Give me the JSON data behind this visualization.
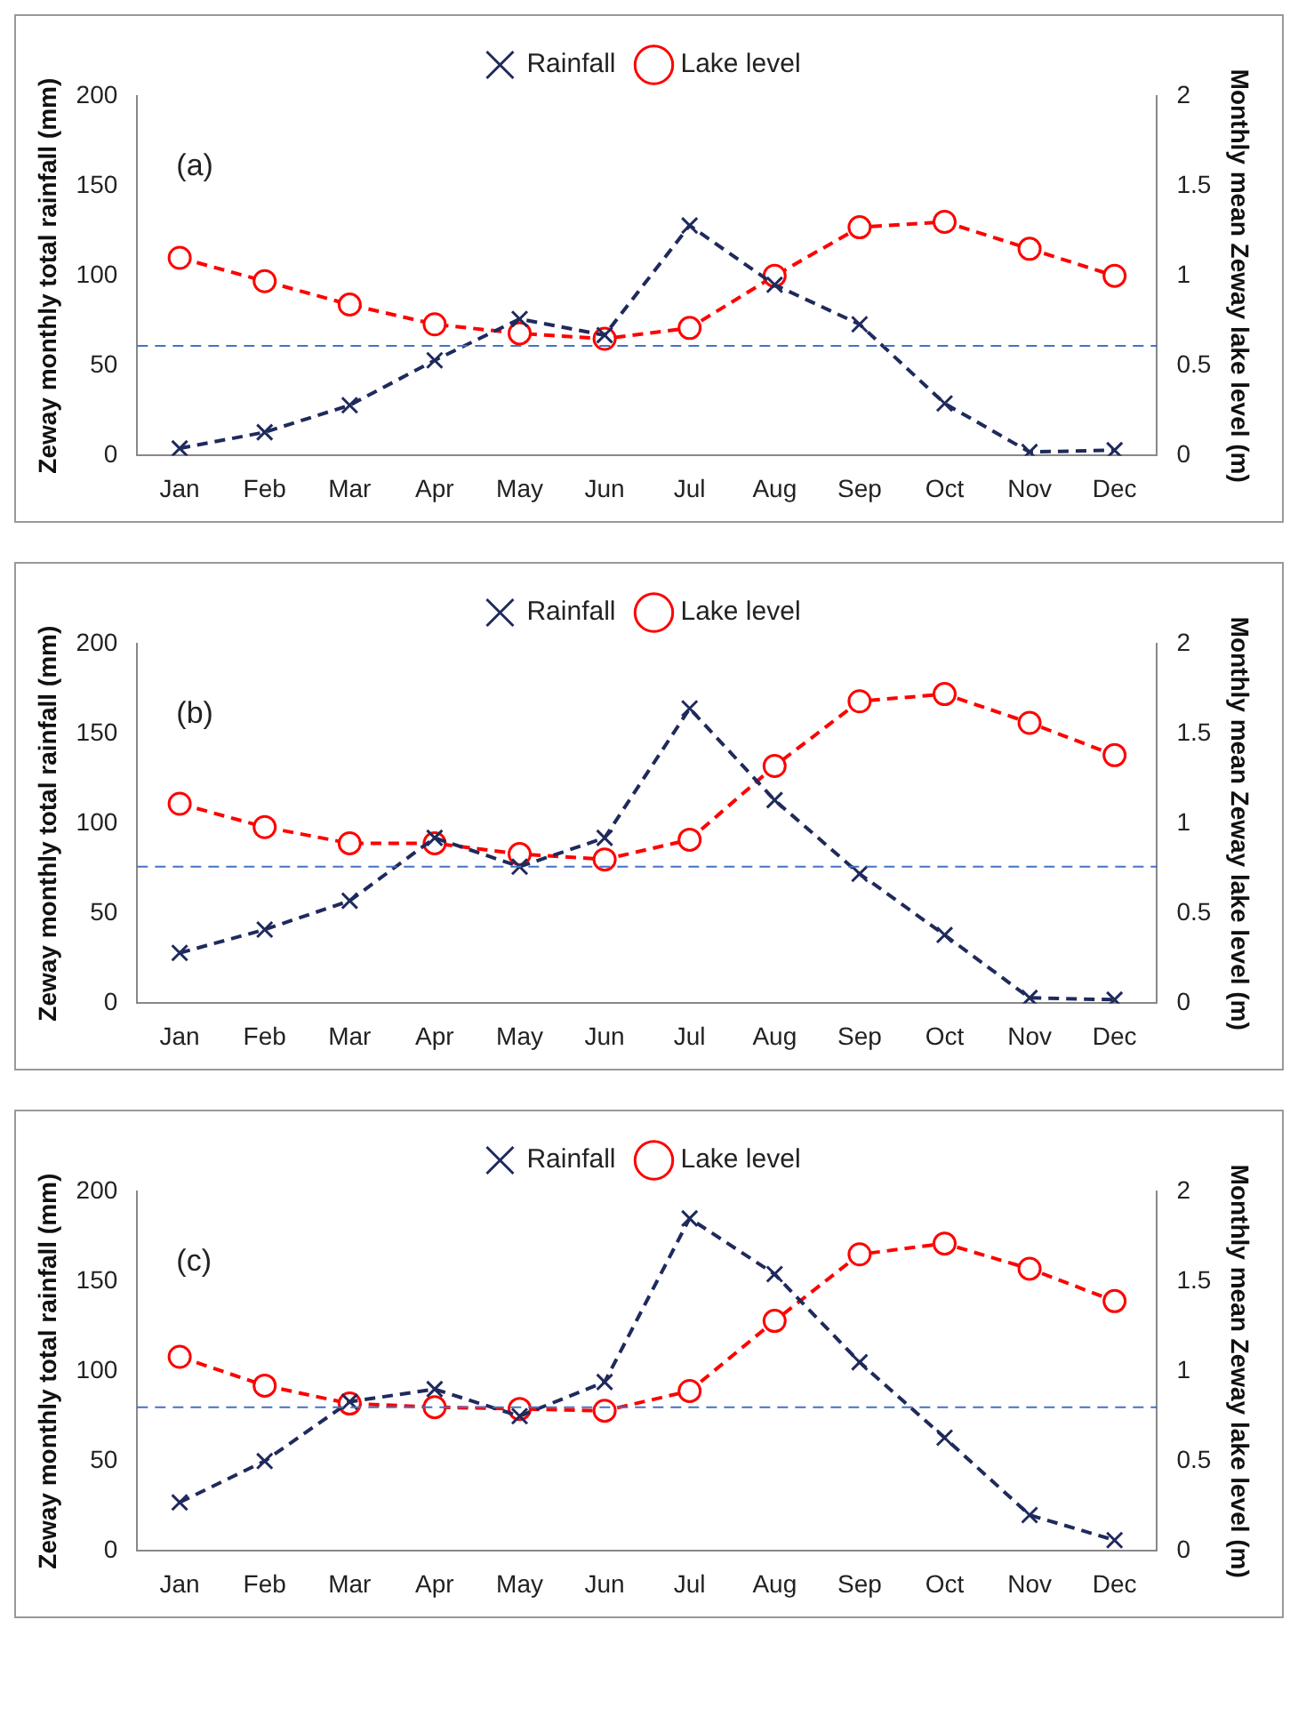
{
  "chart_data": [
    {
      "type": "line",
      "categories": [
        "Jan",
        "Feb",
        "Mar",
        "Apr",
        "May",
        "Jun",
        "Jul",
        "Aug",
        "Sep",
        "Oct",
        "Nov",
        "Dec"
      ],
      "ylabel": "Zeway monthly total rainfall (mm)",
      "y2label": "Monthly mean Zeway lake level (m)",
      "ylim": [
        0,
        200
      ],
      "yticks": [
        0,
        50,
        100,
        150,
        200
      ],
      "y2lim": [
        0,
        2
      ],
      "y2ticks": [
        0,
        0.5,
        1,
        1.5,
        2
      ],
      "grid": false,
      "legend": "top",
      "annotations": [
        "(a)"
      ],
      "series": [
        {
          "name": "Rainfall",
          "color": "#1f2a5c",
          "marker": "cross",
          "line_style": "dashed",
          "values": [
            4,
            13,
            28,
            53,
            76,
            67,
            128,
            95,
            73,
            29,
            2,
            3
          ]
        },
        {
          "name": "Lake level",
          "color": "#ff0000",
          "marker": "circle",
          "line_style": "dashed",
          "axis": "y2",
          "values": [
            1.1,
            0.97,
            0.84,
            0.73,
            0.68,
            0.65,
            0.71,
            1.0,
            1.27,
            1.3,
            1.15,
            1.0
          ]
        }
      ],
      "ref_lines": [
        {
          "axis": "y",
          "value": 61,
          "color": "#4472c4",
          "line_style": "dashed"
        }
      ]
    },
    {
      "type": "line",
      "categories": [
        "Jan",
        "Feb",
        "Mar",
        "Apr",
        "May",
        "Jun",
        "Jul",
        "Aug",
        "Sep",
        "Oct",
        "Nov",
        "Dec"
      ],
      "ylabel": "Zeway monthly total rainfall (mm)",
      "y2label": "Monthly mean Zeway lake level (m)",
      "ylim": [
        0,
        200
      ],
      "yticks": [
        0,
        50,
        100,
        150,
        200
      ],
      "y2lim": [
        0,
        2
      ],
      "y2ticks": [
        0,
        0.5,
        1,
        1.5,
        2
      ],
      "grid": false,
      "legend": "top",
      "annotations": [
        "(b)"
      ],
      "series": [
        {
          "name": "Rainfall",
          "color": "#1f2a5c",
          "marker": "cross",
          "line_style": "dashed",
          "values": [
            28,
            41,
            57,
            92,
            76,
            92,
            164,
            113,
            72,
            38,
            3,
            2
          ]
        },
        {
          "name": "Lake level",
          "color": "#ff0000",
          "marker": "circle",
          "line_style": "dashed",
          "axis": "y2",
          "values": [
            1.11,
            0.98,
            0.89,
            0.89,
            0.83,
            0.8,
            0.91,
            1.32,
            1.68,
            1.72,
            1.56,
            1.38
          ]
        }
      ],
      "ref_lines": [
        {
          "axis": "y",
          "value": 76,
          "color": "#4472c4",
          "line_style": "dashed"
        }
      ]
    },
    {
      "type": "line",
      "categories": [
        "Jan",
        "Feb",
        "Mar",
        "Apr",
        "May",
        "Jun",
        "Jul",
        "Aug",
        "Sep",
        "Oct",
        "Nov",
        "Dec"
      ],
      "ylabel": "Zeway monthly total rainfall (mm)",
      "y2label": "Monthly mean Zeway lake level (m)",
      "ylim": [
        0,
        200
      ],
      "yticks": [
        0,
        50,
        100,
        150,
        200
      ],
      "y2lim": [
        0,
        2
      ],
      "y2ticks": [
        0,
        0.5,
        1,
        1.5,
        2
      ],
      "grid": false,
      "legend": "top",
      "annotations": [
        "(c)"
      ],
      "series": [
        {
          "name": "Rainfall",
          "color": "#1f2a5c",
          "marker": "cross",
          "line_style": "dashed",
          "values": [
            27,
            50,
            83,
            90,
            75,
            94,
            185,
            154,
            105,
            63,
            20,
            6
          ]
        },
        {
          "name": "Lake level",
          "color": "#ff0000",
          "marker": "circle",
          "line_style": "dashed",
          "axis": "y2",
          "values": [
            1.08,
            0.92,
            0.82,
            0.8,
            0.79,
            0.78,
            0.89,
            1.28,
            1.65,
            1.71,
            1.57,
            1.39
          ]
        }
      ],
      "ref_lines": [
        {
          "axis": "y",
          "value": 80,
          "color": "#4472c4",
          "line_style": "dashed"
        }
      ]
    }
  ]
}
